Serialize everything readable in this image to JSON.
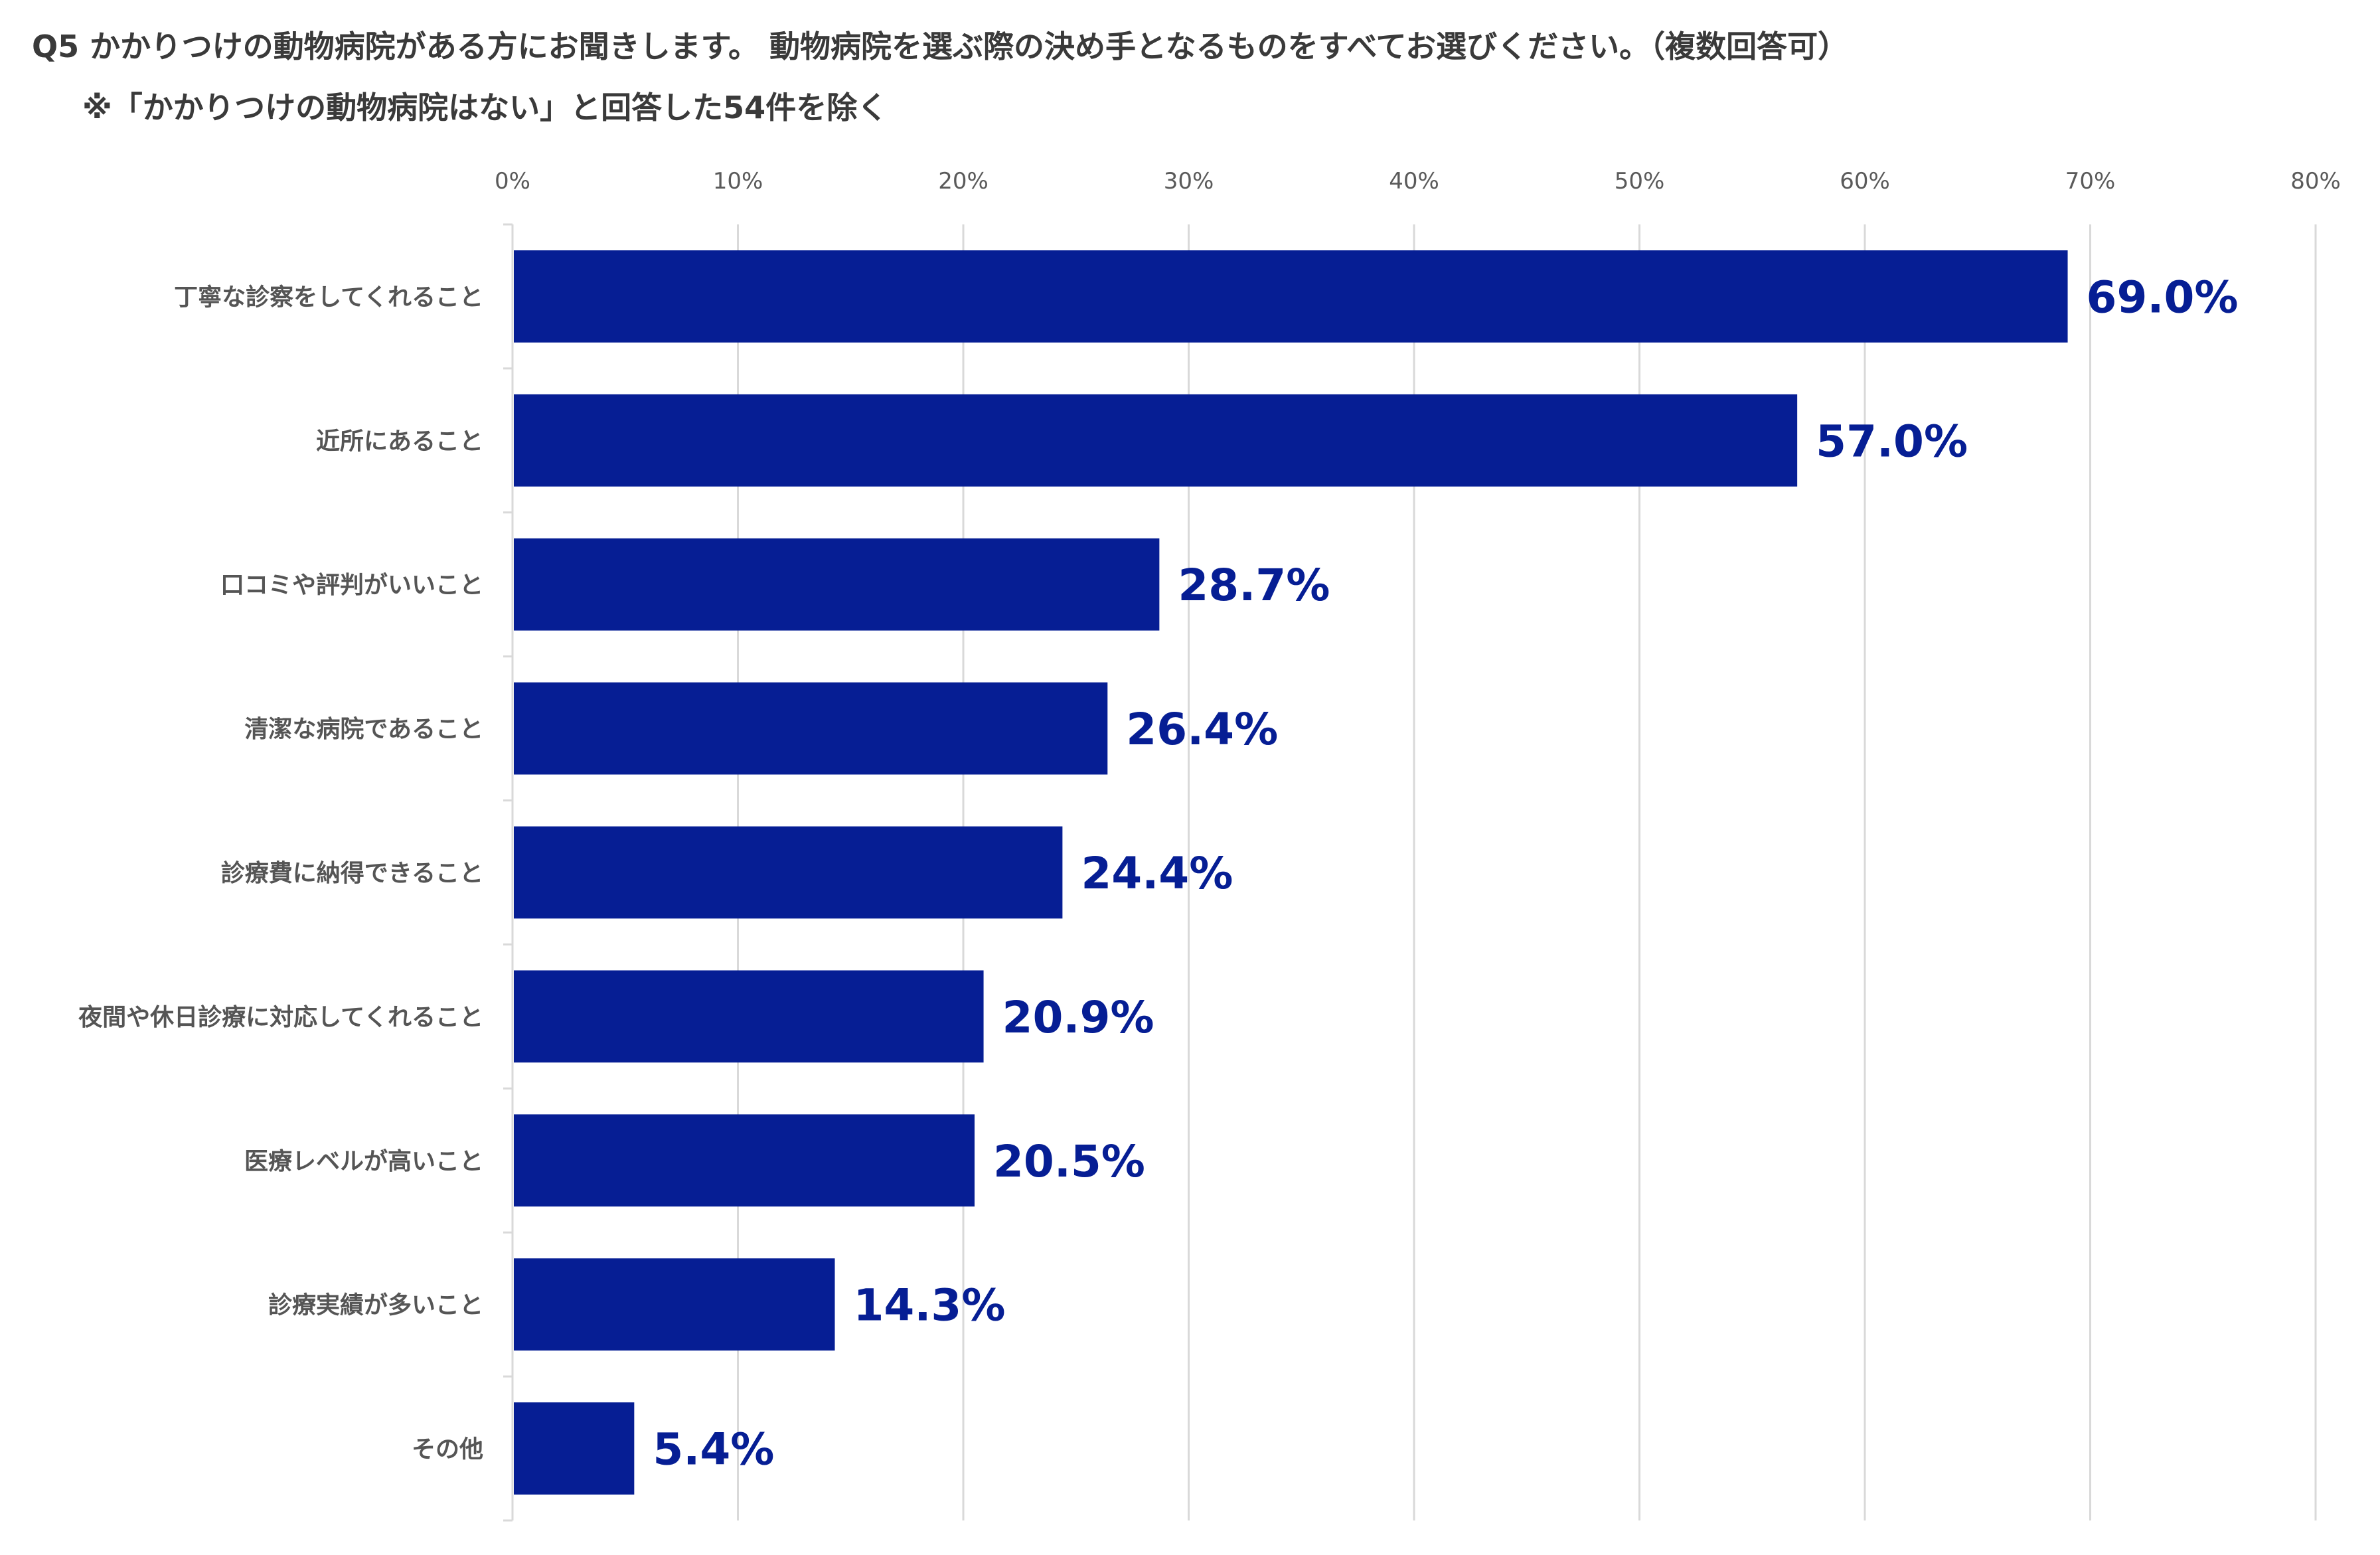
{
  "title": {
    "line1": "Q5 かかりつけの動物病院がある方にお聞きします。 動物病院を選ぶ際の決め手となるものをすべてお選びください。（複数回答可）",
    "line2": "※「かかりつけの動物病院はない」と回答した54件を除く"
  },
  "colors": {
    "bar": "#061E94",
    "label": "#061E94",
    "grid": "#d9d9d9"
  },
  "chart_data": {
    "type": "bar",
    "orientation": "horizontal",
    "categories": [
      "丁寧な診察をしてくれること",
      "近所にあること",
      "口コミや評判がいいこと",
      "清潔な病院であること",
      "診療費に納得できること",
      "夜間や休日診療に対応してくれること",
      "医療レベルが高いこと",
      "診療実績が多いこと",
      "その他"
    ],
    "values": [
      69.0,
      57.0,
      28.7,
      26.4,
      24.4,
      20.9,
      20.5,
      14.3,
      5.4
    ],
    "value_labels": [
      "69.0%",
      "57.0%",
      "28.7%",
      "26.4%",
      "24.4%",
      "20.9%",
      "20.5%",
      "14.3%",
      "5.4%"
    ],
    "xticks": [
      "0%",
      "10%",
      "20%",
      "30%",
      "40%",
      "50%",
      "60%",
      "70%",
      "80%"
    ],
    "xlim": [
      0,
      80
    ],
    "grid": true,
    "xaxis_position": "top"
  }
}
